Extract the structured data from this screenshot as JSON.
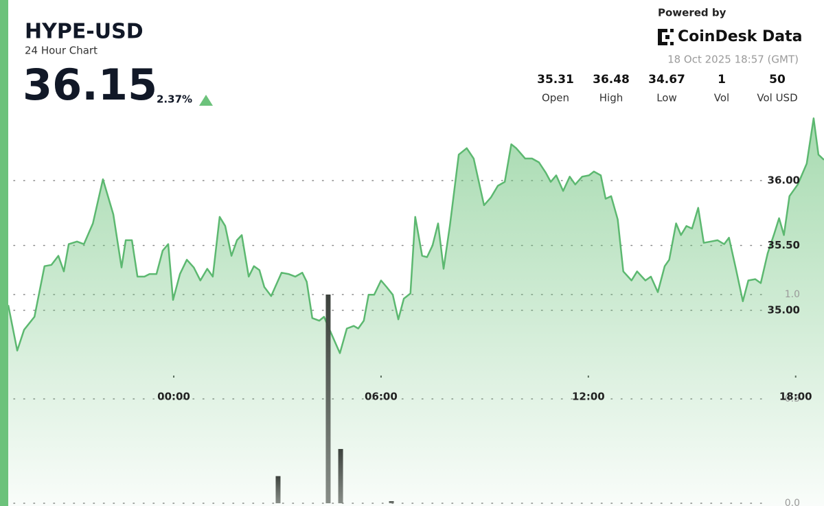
{
  "chart_data": {
    "type": "line",
    "title": "HYPE-USD",
    "subtitle": "24 Hour Chart",
    "price": 36.15,
    "change": "2.37%",
    "powered_by": "Powered by",
    "brand": "CoinDesk Data",
    "timestamp": "18 Oct 2025 18:57 (GMT)",
    "stats": [
      {
        "value": 35.31,
        "label": "Open"
      },
      {
        "value": 36.48,
        "label": "High"
      },
      {
        "value": 34.67,
        "label": "Low"
      },
      {
        "value": 1,
        "label": "Vol"
      },
      {
        "value": 50,
        "label": "Vol USD"
      }
    ],
    "xlim": [
      -4.79,
      18.82
    ],
    "xticks": [
      {
        "value": 0,
        "label": "00:00"
      },
      {
        "value": 6,
        "label": "06:00"
      },
      {
        "value": 12,
        "label": "12:00"
      },
      {
        "value": 18,
        "label": "18:00"
      }
    ],
    "ylim": [
      34.4,
      36.6
    ],
    "yticks": [
      {
        "value": 35,
        "label": "35.00"
      },
      {
        "value": 35.5,
        "label": "35.50"
      },
      {
        "value": 36,
        "label": "36.00"
      }
    ],
    "y2lim": [
      0,
      1.2
    ],
    "y2ticks": [
      {
        "value": 0,
        "label": "0.0"
      },
      {
        "value": 0.5,
        "label": "0.5"
      },
      {
        "value": 1,
        "label": "1.0"
      }
    ],
    "grid": true,
    "series": [
      {
        "color": "#5cb870",
        "x": [
          -4.79,
          -4.53,
          -4.33,
          -4.03,
          -3.74,
          -3.54,
          -3.34,
          -3.18,
          -3.04,
          -2.8,
          -2.6,
          -2.34,
          -2.05,
          -1.75,
          -1.51,
          -1.39,
          -1.21,
          -1.05,
          -0.85,
          -0.7,
          -0.5,
          -0.32,
          -0.16,
          -0.02,
          0.18,
          0.38,
          0.58,
          0.77,
          0.97,
          1.13,
          1.33,
          1.49,
          1.67,
          1.83,
          1.97,
          2.17,
          2.32,
          2.48,
          2.62,
          2.82,
          3.12,
          3.32,
          3.52,
          3.72,
          3.85,
          4.01,
          4.21,
          4.35,
          4.51,
          4.81,
          5.01,
          5.21,
          5.34,
          5.5,
          5.64,
          5.8,
          6.0,
          6.16,
          6.34,
          6.5,
          6.66,
          6.85,
          6.99,
          7.19,
          7.33,
          7.49,
          7.65,
          7.81,
          7.99,
          8.25,
          8.48,
          8.68,
          8.98,
          9.18,
          9.38,
          9.58,
          9.77,
          9.91,
          10.17,
          10.37,
          10.57,
          10.77,
          10.91,
          11.07,
          11.27,
          11.46,
          11.62,
          11.82,
          12.02,
          12.16,
          12.36,
          12.5,
          12.66,
          12.85,
          13.01,
          13.25,
          13.41,
          13.65,
          13.81,
          14.01,
          14.21,
          14.34,
          14.54,
          14.68,
          14.84,
          15.0,
          15.18,
          15.34,
          15.54,
          15.74,
          15.93,
          16.07,
          16.27,
          16.47,
          16.63,
          16.83,
          16.99,
          17.19,
          17.38,
          17.52,
          17.66,
          17.82,
          18.06,
          18.32,
          18.52,
          18.66,
          18.82
        ],
        "values": [
          35.04,
          34.69,
          34.85,
          34.95,
          35.34,
          35.35,
          35.42,
          35.3,
          35.51,
          35.53,
          35.51,
          35.67,
          36.01,
          35.74,
          35.33,
          35.54,
          35.54,
          35.26,
          35.26,
          35.28,
          35.28,
          35.46,
          35.51,
          35.08,
          35.28,
          35.39,
          35.33,
          35.23,
          35.32,
          35.26,
          35.72,
          35.65,
          35.42,
          35.54,
          35.58,
          35.26,
          35.34,
          35.31,
          35.18,
          35.11,
          35.29,
          35.28,
          35.26,
          35.29,
          35.22,
          34.94,
          34.92,
          34.95,
          34.85,
          34.67,
          34.86,
          34.88,
          34.86,
          34.92,
          35.12,
          35.12,
          35.23,
          35.18,
          35.12,
          34.93,
          35.09,
          35.13,
          35.72,
          35.42,
          35.41,
          35.5,
          35.67,
          35.32,
          35.65,
          36.2,
          36.25,
          36.17,
          35.81,
          35.87,
          35.96,
          35.99,
          36.28,
          36.25,
          36.17,
          36.17,
          36.14,
          36.06,
          35.99,
          36.04,
          35.92,
          36.03,
          35.97,
          36.03,
          36.04,
          36.07,
          36.04,
          35.86,
          35.88,
          35.7,
          35.3,
          35.23,
          35.3,
          35.23,
          35.26,
          35.14,
          35.34,
          35.39,
          35.67,
          35.58,
          35.65,
          35.63,
          35.79,
          35.52,
          35.53,
          35.54,
          35.51,
          35.56,
          35.32,
          35.07,
          35.23,
          35.24,
          35.21,
          35.44,
          35.59,
          35.71,
          35.58,
          35.88,
          35.97,
          36.13,
          36.48,
          36.2,
          36.16
        ]
      },
      {
        "type": "bar",
        "axis": "y2",
        "color": "#4a4f4a",
        "x": [
          3.02,
          4.47,
          4.83,
          6.3
        ],
        "values": [
          0.13,
          1.0,
          0.26,
          0.01
        ]
      }
    ]
  }
}
